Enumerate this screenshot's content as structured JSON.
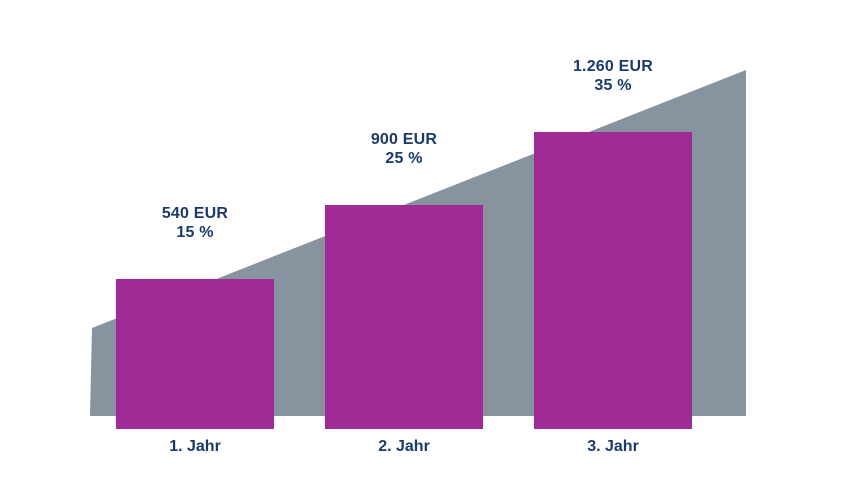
{
  "chart_data": {
    "type": "bar",
    "title": "",
    "xlabel": "",
    "ylabel": "",
    "categories": [
      "1. Jahr",
      "2. Jahr",
      "3. Jahr"
    ],
    "values": [
      540,
      900,
      1260
    ],
    "percents": [
      15,
      25,
      35
    ],
    "currency": "EUR",
    "grid": false,
    "legend": false,
    "axes_visible": false,
    "background_shape": "rising-trend-wedge",
    "bars": [
      {
        "category": "1. Jahr",
        "value": 540,
        "percent": 15,
        "value_label": "540 EUR",
        "percent_label": "15 %"
      },
      {
        "category": "2. Jahr",
        "value": 900,
        "percent": 25,
        "value_label": "900 EUR",
        "percent_label": "25 %"
      },
      {
        "category": "3. Jahr",
        "value": 1260,
        "percent": 35,
        "value_label": "1.260 EUR",
        "percent_label": "35 %"
      }
    ],
    "colors": {
      "bar": "#A02B96",
      "wedge": "#8893A0",
      "label_text": "#1B3A6B",
      "background": "#FFFFFF"
    }
  }
}
